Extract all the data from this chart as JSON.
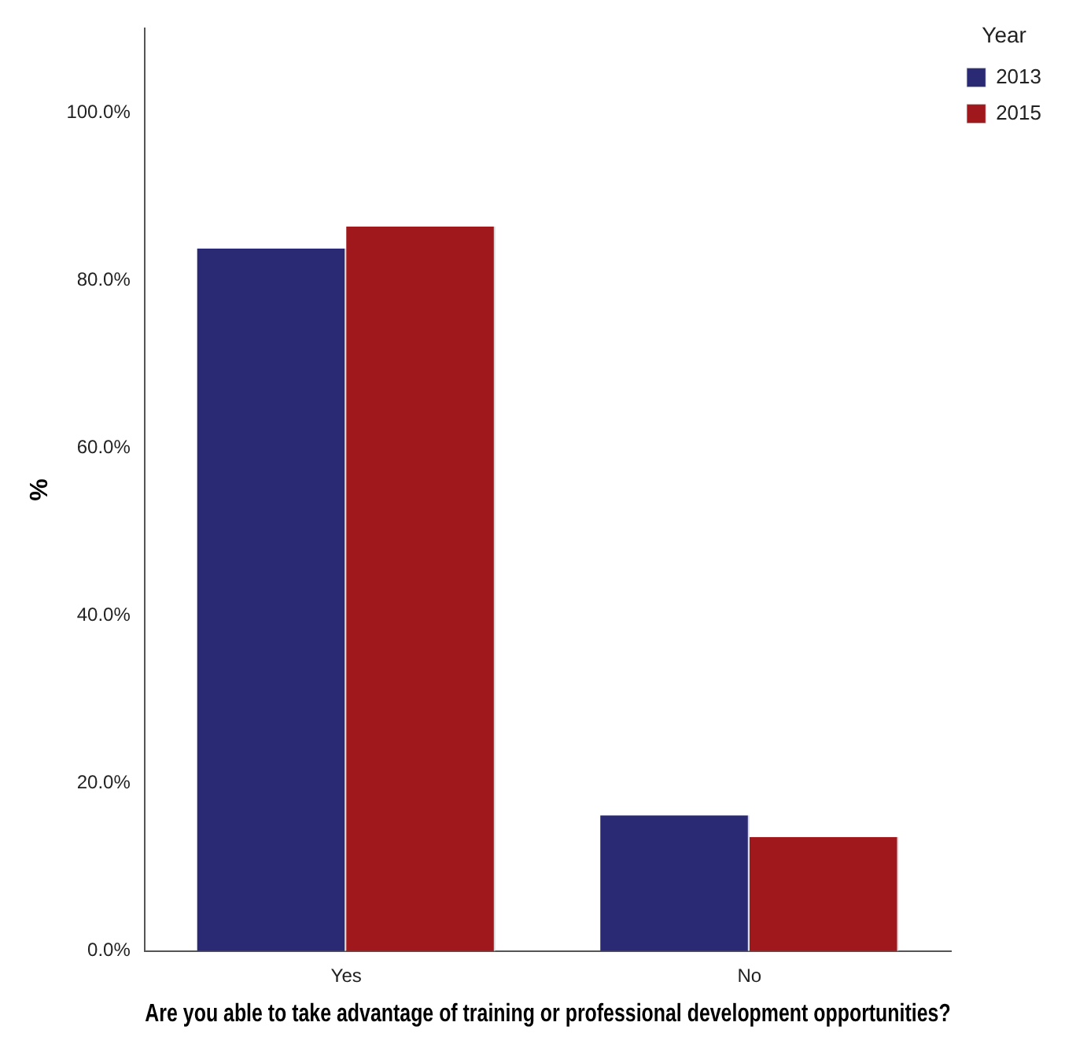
{
  "chart_data": {
    "type": "bar",
    "xlabel": "Are you able to take advantage of training or professional development opportunities?",
    "ylabel": "%",
    "legend_title": "Year",
    "categories": [
      "Yes",
      "No"
    ],
    "series": [
      {
        "name": "2013",
        "color": "#292a73",
        "values": [
          83.8,
          16.2
        ]
      },
      {
        "name": "2015",
        "color": "#a0171c",
        "values": [
          86.4,
          13.6
        ]
      }
    ],
    "ylim": [
      0,
      110
    ],
    "yticks": [
      {
        "value": 0,
        "label": "0.0%"
      },
      {
        "value": 20,
        "label": "20.0%"
      },
      {
        "value": 40,
        "label": "40.0%"
      },
      {
        "value": 60,
        "label": "60.0%"
      },
      {
        "value": 80,
        "label": "80.0%"
      },
      {
        "value": 100,
        "label": "100.0%"
      }
    ],
    "grid": false,
    "legend": "top right"
  }
}
